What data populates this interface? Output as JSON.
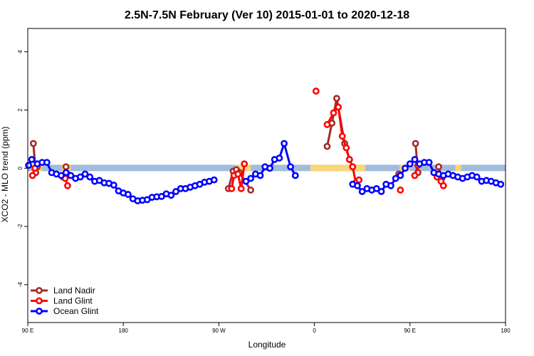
{
  "chart_data": {
    "type": "line",
    "title": "2.5N-7.5N February (Ver 10)   2015-01-01 to 2020-12-18",
    "xlabel": "Longitude",
    "ylabel": "XCO2 - MLO trend (ppm)",
    "xlim": [
      -90,
      210
    ],
    "ylim": [
      -5.3,
      4.8
    ],
    "x_ticks": [
      {
        "value": -90,
        "label": "90 E"
      },
      {
        "value": -30,
        "label": "180"
      },
      {
        "value": 30,
        "label": "90 W"
      },
      {
        "value": 90,
        "label": "0"
      },
      {
        "value": 150,
        "label": "90 E"
      },
      {
        "value": 210,
        "label": "180"
      }
    ],
    "y_ticks": [
      {
        "value": -4,
        "label": "-4"
      },
      {
        "value": -2,
        "label": "-2"
      },
      {
        "value": 0,
        "label": "0"
      },
      {
        "value": 2,
        "label": "2"
      },
      {
        "value": 4,
        "label": "4"
      }
    ],
    "grid": false,
    "legend_position": "bottom-left",
    "background_bands": {
      "ocean_color": "#a2bcdc",
      "land_color": "#fad67a",
      "y_range": [
        -0.1,
        0.12
      ],
      "land_segments": [
        [
          -87.5,
          -81
        ],
        [
          -68.5,
          -63
        ],
        [
          40,
          50
        ],
        [
          87.5,
          122
        ],
        [
          143.5,
          150
        ],
        [
          178.5,
          182
        ]
      ]
    },
    "series": [
      {
        "name": "Land Nadir",
        "color": "#a52a2a",
        "segments": [
          [
            [
              -86.5,
              0.85
            ],
            [
              -85,
              -0.15
            ],
            [
              -84,
              0.05
            ]
          ],
          [
            [
              -66,
              0.05
            ],
            [
              -65,
              -0.2
            ]
          ],
          [
            [
              36,
              -0.7
            ],
            [
              39,
              -0.1
            ],
            [
              41,
              -0.05
            ],
            [
              43,
              -0.15
            ],
            [
              50,
              -0.75
            ]
          ],
          [
            [
              98,
              0.75
            ],
            [
              101,
              1.55
            ],
            [
              104,
              2.4
            ],
            [
              109,
              0.85
            ],
            [
              112,
              0.3
            ]
          ],
          [
            [
              143,
              -0.2
            ]
          ],
          [
            [
              153.5,
              0.85
            ],
            [
              155,
              -0.15
            ]
          ],
          [
            [
              168,
              0.05
            ],
            [
              170,
              -0.35
            ]
          ]
        ]
      },
      {
        "name": "Land Glint",
        "color": "#ff0000",
        "segments": [
          [
            [
              -87,
              -0.25
            ],
            [
              -85.5,
              0.0
            ]
          ],
          [
            [
              -68,
              -0.3
            ],
            [
              -66.5,
              -0.35
            ],
            [
              -65,
              -0.6
            ]
          ],
          [
            [
              38,
              -0.7
            ],
            [
              39.5,
              -0.25
            ],
            [
              42,
              -0.2
            ],
            [
              44,
              -0.7
            ],
            [
              46,
              0.15
            ]
          ],
          [
            [
              91,
              2.65
            ]
          ],
          [
            [
              98,
              1.5
            ],
            [
              102,
              1.9
            ],
            [
              105,
              2.1
            ],
            [
              107.5,
              1.1
            ],
            [
              110,
              0.7
            ],
            [
              112,
              0.3
            ],
            [
              114,
              0.05
            ],
            [
              116,
              -0.5
            ],
            [
              118,
              -0.4
            ]
          ],
          [
            [
              144,
              -0.75
            ]
          ],
          [
            [
              153,
              -0.25
            ],
            [
              155,
              0.1
            ]
          ],
          [
            [
              167,
              -0.3
            ],
            [
              169.5,
              -0.45
            ],
            [
              171,
              -0.6
            ]
          ]
        ]
      },
      {
        "name": "Ocean Glint",
        "color": "#0000ff",
        "segments": [
          [
            [
              -89.5,
              0.1
            ],
            [
              -87.5,
              0.3
            ],
            [
              -84,
              0.15
            ],
            [
              -81,
              0.2
            ],
            [
              -78,
              0.2
            ],
            [
              -75,
              -0.15
            ],
            [
              -72,
              -0.2
            ],
            [
              -69,
              -0.25
            ],
            [
              -66,
              -0.15
            ],
            [
              -63,
              -0.25
            ],
            [
              -60,
              -0.35
            ],
            [
              -57,
              -0.3
            ],
            [
              -54,
              -0.2
            ],
            [
              -51,
              -0.3
            ],
            [
              -48,
              -0.45
            ],
            [
              -45,
              -0.42
            ],
            [
              -42,
              -0.5
            ],
            [
              -39,
              -0.52
            ],
            [
              -36,
              -0.58
            ],
            [
              -33,
              -0.78
            ],
            [
              -30,
              -0.85
            ],
            [
              -27,
              -0.9
            ],
            [
              -24,
              -1.05
            ],
            [
              -21,
              -1.12
            ],
            [
              -18,
              -1.1
            ],
            [
              -15,
              -1.08
            ],
            [
              -12,
              -1.0
            ],
            [
              -9,
              -0.98
            ],
            [
              -6,
              -0.97
            ],
            [
              -3,
              -0.88
            ],
            [
              0,
              -0.93
            ],
            [
              3,
              -0.8
            ],
            [
              6,
              -0.7
            ],
            [
              9,
              -0.7
            ],
            [
              12,
              -0.65
            ],
            [
              15,
              -0.6
            ],
            [
              18,
              -0.55
            ],
            [
              21,
              -0.48
            ],
            [
              24,
              -0.45
            ],
            [
              27,
              -0.4
            ]
          ],
          [
            [
              47,
              -0.45
            ],
            [
              50,
              -0.35
            ],
            [
              53,
              -0.2
            ],
            [
              56,
              -0.25
            ],
            [
              59,
              0.05
            ],
            [
              62,
              0.0
            ],
            [
              65,
              0.3
            ],
            [
              68,
              0.35
            ],
            [
              71,
              0.85
            ],
            [
              75,
              0.05
            ],
            [
              78,
              -0.25
            ]
          ],
          [
            [
              114,
              -0.55
            ],
            [
              117,
              -0.6
            ],
            [
              120,
              -0.8
            ],
            [
              123,
              -0.7
            ],
            [
              126,
              -0.75
            ],
            [
              129,
              -0.7
            ],
            [
              132,
              -0.8
            ],
            [
              135,
              -0.55
            ],
            [
              138,
              -0.6
            ],
            [
              141,
              -0.35
            ],
            [
              144,
              -0.25
            ],
            [
              147,
              0.0
            ],
            [
              150,
              0.15
            ],
            [
              153,
              0.3
            ],
            [
              156,
              0.15
            ],
            [
              159,
              0.2
            ],
            [
              162,
              0.2
            ],
            [
              165,
              -0.15
            ],
            [
              168,
              -0.2
            ],
            [
              171,
              -0.25
            ],
            [
              174,
              -0.2
            ],
            [
              177,
              -0.25
            ],
            [
              180,
              -0.3
            ],
            [
              183,
              -0.35
            ],
            [
              186,
              -0.3
            ],
            [
              189,
              -0.25
            ],
            [
              192,
              -0.3
            ],
            [
              195,
              -0.45
            ],
            [
              198,
              -0.42
            ],
            [
              201,
              -0.45
            ],
            [
              204,
              -0.5
            ],
            [
              207,
              -0.55
            ]
          ]
        ]
      }
    ]
  }
}
